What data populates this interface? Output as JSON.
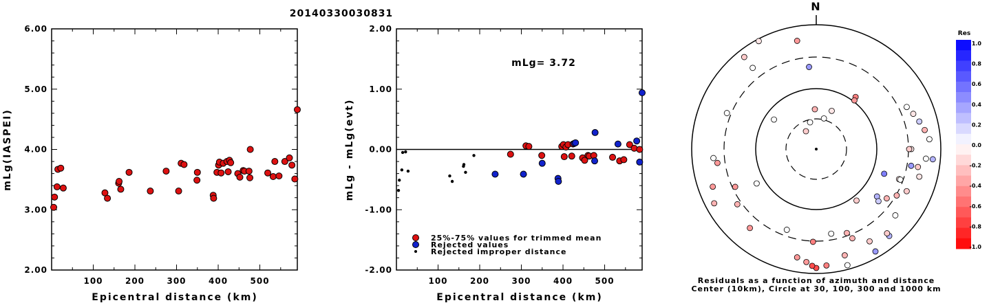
{
  "title": "20140330030831",
  "chart_data": [
    {
      "type": "scatter",
      "xlabel": "Epicentral distance (km)",
      "ylabel": "mLg(IASPEI)",
      "xlim": [
        0,
        590
      ],
      "ylim": [
        2.0,
        6.0
      ],
      "xticks": [
        "100",
        "200",
        "300",
        "400",
        "500"
      ],
      "yticks": [
        "2.00",
        "3.00",
        "4.00",
        "5.00",
        "6.00"
      ],
      "series": [
        {
          "color": "#dd1111",
          "points": [
            [
              5,
              3.04
            ],
            [
              7,
              3.21
            ],
            [
              13,
              3.38
            ],
            [
              15,
              3.67
            ],
            [
              22,
              3.69
            ],
            [
              28,
              3.36
            ],
            [
              128,
              3.28
            ],
            [
              134,
              3.19
            ],
            [
              161,
              3.44
            ],
            [
              162,
              3.47
            ],
            [
              166,
              3.34
            ],
            [
              186,
              3.62
            ],
            [
              237,
              3.31
            ],
            [
              275,
              3.64
            ],
            [
              305,
              3.31
            ],
            [
              311,
              3.77
            ],
            [
              318,
              3.75
            ],
            [
              349,
              3.49
            ],
            [
              350,
              3.62
            ],
            [
              388,
              3.24
            ],
            [
              389,
              3.19
            ],
            [
              397,
              3.62
            ],
            [
              401,
              3.74
            ],
            [
              403,
              3.79
            ],
            [
              407,
              3.61
            ],
            [
              412,
              3.77
            ],
            [
              421,
              3.8
            ],
            [
              424,
              3.63
            ],
            [
              427,
              3.82
            ],
            [
              430,
              3.78
            ],
            [
              447,
              3.6
            ],
            [
              452,
              3.54
            ],
            [
              460,
              3.65
            ],
            [
              463,
              3.64
            ],
            [
              474,
              3.64
            ],
            [
              476,
              3.53
            ],
            [
              477,
              4.0
            ],
            [
              519,
              3.61
            ],
            [
              532,
              3.55
            ],
            [
              536,
              3.8
            ],
            [
              546,
              3.56
            ],
            [
              560,
              3.8
            ],
            [
              571,
              3.86
            ],
            [
              577,
              3.74
            ],
            [
              584,
              3.51
            ],
            [
              590,
              4.66
            ]
          ]
        }
      ]
    },
    {
      "type": "scatter",
      "xlabel": "Epicentral distance (km)",
      "ylabel": "mLg - mLg(evt)",
      "xlim": [
        0,
        590
      ],
      "ylim": [
        -2.0,
        2.0
      ],
      "xticks": [
        "100",
        "200",
        "300",
        "400",
        "500"
      ],
      "yticks": [
        "-2.00",
        "-1.00",
        "0.00",
        "1.00",
        "2.00"
      ],
      "annotation": "mLg= 3.72",
      "series": [
        {
          "name": "25%-75% values for trimmed mean",
          "color": "#dd1111",
          "points": [
            [
              274,
              -0.08
            ],
            [
              311,
              0.06
            ],
            [
              318,
              0.05
            ],
            [
              349,
              -0.1
            ],
            [
              397,
              0.05
            ],
            [
              401,
              0.08
            ],
            [
              403,
              -0.12
            ],
            [
              407,
              0.04
            ],
            [
              412,
              0.08
            ],
            [
              421,
              -0.11
            ],
            [
              424,
              0.09
            ],
            [
              447,
              -0.14
            ],
            [
              452,
              -0.18
            ],
            [
              460,
              -0.1
            ],
            [
              463,
              -0.11
            ],
            [
              474,
              -0.1
            ],
            [
              519,
              -0.13
            ],
            [
              536,
              -0.19
            ],
            [
              546,
              -0.17
            ],
            [
              560,
              0.08
            ],
            [
              571,
              0.02
            ],
            [
              584,
              0.0
            ]
          ]
        },
        {
          "name": "Rejected values",
          "color": "#1122cc",
          "points": [
            [
              237,
              -0.41
            ],
            [
              305,
              -0.41
            ],
            [
              350,
              -0.23
            ],
            [
              388,
              -0.48
            ],
            [
              389,
              -0.53
            ],
            [
              427,
              0.1
            ],
            [
              430,
              0.11
            ],
            [
              476,
              -0.19
            ],
            [
              477,
              0.28
            ],
            [
              532,
              0.09
            ],
            [
              577,
              0.14
            ],
            [
              584,
              -0.21
            ],
            [
              590,
              0.94
            ]
          ]
        },
        {
          "name": "Rejected improper distance",
          "color": "#000000",
          "points": [
            [
              5,
              -0.68
            ],
            [
              7,
              -0.51
            ],
            [
              13,
              -0.34
            ],
            [
              15,
              -0.05
            ],
            [
              22,
              -0.04
            ],
            [
              28,
              -0.36
            ],
            [
              128,
              -0.44
            ],
            [
              134,
              -0.53
            ],
            [
              161,
              -0.28
            ],
            [
              162,
              -0.25
            ],
            [
              166,
              -0.38
            ],
            [
              186,
              -0.1
            ]
          ]
        }
      ]
    }
  ],
  "polar": {
    "north_label": "N",
    "caption_line1": "Residuals as a function of azimuth and distance",
    "caption_line2": "Center (10km), Circle at 30, 100, 300 and 1000 km",
    "points": [
      [
        -13,
        0.0
      ],
      [
        -2,
        -0.3
      ],
      [
        14,
        0.0
      ],
      [
        22,
        -0.1
      ],
      [
        -68,
        0.0
      ],
      [
        37,
        -0.5
      ],
      [
        -55,
        0.0
      ],
      [
        -38,
        -0.2
      ],
      [
        -28,
        -0.1
      ],
      [
        -38,
        0.0
      ],
      [
        110,
        -0.1
      ],
      [
        -10,
        -0.4
      ],
      [
        -30,
        -0.2
      ],
      [
        110,
        0.5
      ],
      [
        130,
        0.0
      ],
      [
        90,
        -0.1
      ],
      [
        -110,
        -0.4
      ],
      [
        -5,
        0.4
      ],
      [
        38,
        -0.4
      ],
      [
        140,
        0.3
      ],
      [
        150,
        0.4
      ],
      [
        128,
        0.3
      ],
      [
        120,
        -0.3
      ],
      [
        142,
        -0.2
      ],
      [
        165,
        -0.3
      ],
      [
        175,
        -0.5
      ],
      [
        -178,
        -0.5
      ],
      [
        165,
        0.0
      ],
      [
        158,
        -0.3
      ],
      [
        170,
        0.0
      ],
      [
        -140,
        -0.4
      ],
      [
        -118,
        -0.3
      ],
      [
        -125,
        -0.3
      ],
      [
        -160,
        0.0
      ],
      [
        -170,
        -0.4
      ],
      [
        -175,
        -0.4
      ],
      [
        180,
        -0.7
      ],
      [
        -178,
        -0.7
      ],
      [
        -120,
        0.0
      ],
      [
        -95,
        0.0
      ],
      [
        -98,
        -0.4
      ],
      [
        -115,
        -0.4
      ],
      [
        90,
        -0.2
      ],
      [
        95,
        0.0
      ],
      [
        100,
        -0.2
      ],
      [
        105,
        -0.1
      ],
      [
        115,
        -0.2
      ],
      [
        125,
        -0.3
      ],
      [
        130,
        0.2
      ],
      [
        140,
        -0.2
      ],
      [
        150,
        -0.2
      ],
      [
        160,
        -0.3
      ],
      [
        65,
        0.0
      ],
      [
        70,
        -0.1
      ],
      [
        75,
        0.2
      ],
      [
        80,
        -0.3
      ],
      [
        85,
        0.0
      ],
      [
        95,
        0.3
      ],
      [
        100,
        0.4
      ],
      [
        110,
        0.0
      ]
    ]
  },
  "colorbar": {
    "title": "Res",
    "labels": [
      "1.0",
      "0.8",
      "0.6",
      "0.4",
      "0.2",
      "0.0",
      "-0.2",
      "-0.4",
      "-0.6",
      "-0.8",
      "-1.0"
    ]
  }
}
